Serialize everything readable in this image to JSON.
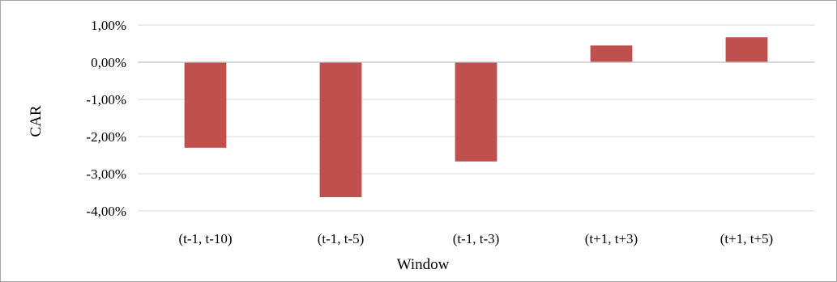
{
  "chart_data": {
    "type": "bar",
    "title": "",
    "xlabel": "Window",
    "ylabel": "CAR",
    "categories": [
      "(t-1, t-10)",
      "(t-1, t-5)",
      "(t-1, t-3)",
      "(t+1, t+3)",
      "(t+1, t+5)"
    ],
    "values": [
      -2.3,
      -3.63,
      -2.67,
      0.45,
      0.67
    ],
    "ylim": [
      -4.0,
      1.0
    ],
    "yticks": [
      1.0,
      0.0,
      -1.0,
      -2.0,
      -3.0,
      -4.0
    ],
    "ytick_labels": [
      "1,00%",
      "0,00%",
      "-1,00%",
      "-2,00%",
      "-3,00%",
      "-4,00%"
    ],
    "grid": "horizontal",
    "legend": "none",
    "bar_color": "#c0504d"
  }
}
